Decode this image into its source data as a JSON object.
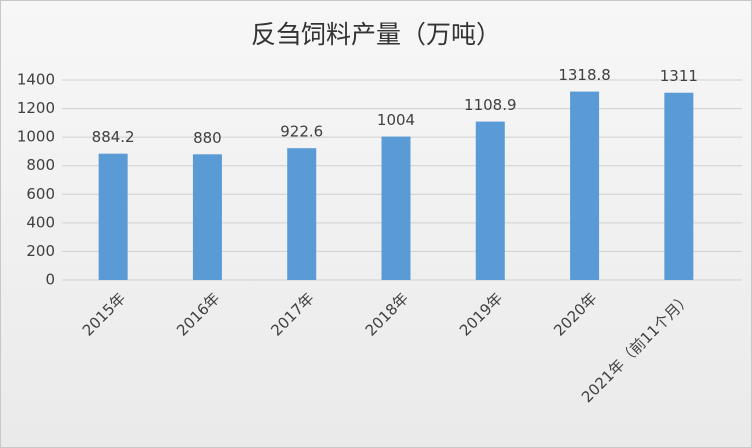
{
  "chart_data": {
    "type": "bar",
    "title": "反刍饲料产量（万吨）",
    "categories": [
      "2015年",
      "2016年",
      "2017年",
      "2018年",
      "2019年",
      "2020年",
      "2021年（前11个月）"
    ],
    "values": [
      884.2,
      880,
      922.6,
      1004,
      1108.9,
      1318.8,
      1311
    ],
    "color": "#5b9bd5",
    "ylim": [
      0,
      1400
    ],
    "yticks": [
      0,
      200,
      400,
      600,
      800,
      1000,
      1200,
      1400
    ],
    "grid": true
  }
}
